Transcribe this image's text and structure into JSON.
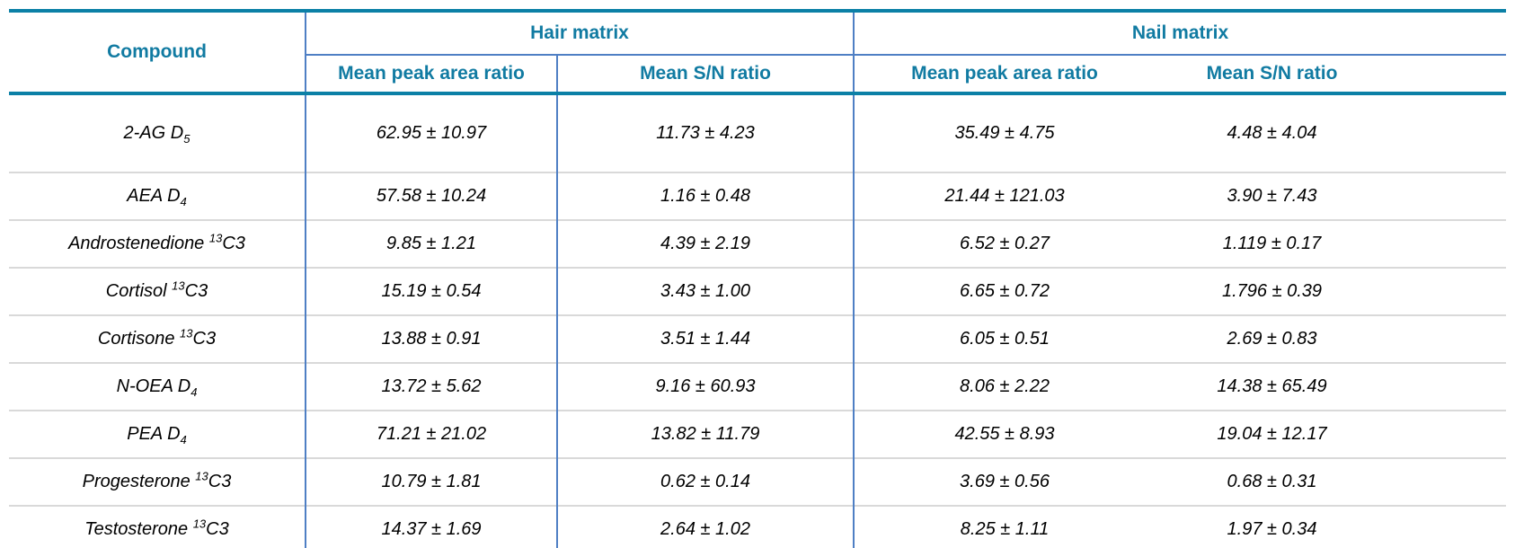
{
  "table": {
    "header": {
      "compound_label": "Compound",
      "groups": [
        {
          "label": "Hair matrix",
          "subcols": [
            "Mean peak area ratio",
            "Mean S/N ratio"
          ]
        },
        {
          "label": "Nail matrix",
          "subcols": [
            "Mean peak area ratio",
            "Mean S/N ratio"
          ]
        }
      ]
    },
    "rows": [
      {
        "compound": {
          "pre": "2-AG D",
          "sub": "5",
          "sup": "",
          "post": ""
        },
        "hair_peak": "62.95 ± 10.97",
        "hair_sn": "11.73 ± 4.23",
        "nail_peak": "35.49 ± 4.75",
        "nail_sn": "4.48 ± 4.04"
      },
      {
        "compound": {
          "pre": "AEA D",
          "sub": "4",
          "sup": "",
          "post": ""
        },
        "hair_peak": "57.58 ± 10.24",
        "hair_sn": "1.16 ± 0.48",
        "nail_peak": "21.44 ± 121.03",
        "nail_sn": "3.90 ± 7.43"
      },
      {
        "compound": {
          "pre": "Androstenedione ",
          "sub": "",
          "sup": "13",
          "post": "C3"
        },
        "hair_peak": "9.85 ± 1.21",
        "hair_sn": "4.39 ± 2.19",
        "nail_peak": "6.52 ± 0.27",
        "nail_sn": "1.119 ± 0.17"
      },
      {
        "compound": {
          "pre": "Cortisol ",
          "sub": "",
          "sup": "13",
          "post": "C3"
        },
        "hair_peak": "15.19 ± 0.54",
        "hair_sn": "3.43 ± 1.00",
        "nail_peak": "6.65 ± 0.72",
        "nail_sn": "1.796 ± 0.39"
      },
      {
        "compound": {
          "pre": "Cortisone ",
          "sub": "",
          "sup": "13",
          "post": "C3"
        },
        "hair_peak": "13.88 ± 0.91",
        "hair_sn": "3.51 ± 1.44",
        "nail_peak": "6.05 ± 0.51",
        "nail_sn": "2.69 ± 0.83"
      },
      {
        "compound": {
          "pre": "N-OEA D",
          "sub": "4",
          "sup": "",
          "post": ""
        },
        "hair_peak": "13.72 ± 5.62",
        "hair_sn": "9.16 ± 60.93",
        "nail_peak": "8.06 ± 2.22",
        "nail_sn": "14.38 ± 65.49"
      },
      {
        "compound": {
          "pre": "PEA D",
          "sub": "4",
          "sup": "",
          "post": ""
        },
        "hair_peak": "71.21 ± 21.02",
        "hair_sn": "13.82 ± 11.79",
        "nail_peak": "42.55 ± 8.93",
        "nail_sn": "19.04 ± 12.17"
      },
      {
        "compound": {
          "pre": "Progesterone ",
          "sub": "",
          "sup": "13",
          "post": "C3"
        },
        "hair_peak": "10.79 ± 1.81",
        "hair_sn": "0.62 ± 0.14",
        "nail_peak": "3.69 ± 0.56",
        "nail_sn": "0.68 ± 0.31"
      },
      {
        "compound": {
          "pre": "Testosterone ",
          "sub": "",
          "sup": "13",
          "post": "C3"
        },
        "hair_peak": "14.37 ± 1.69",
        "hair_sn": "2.64 ± 1.02",
        "nail_peak": "8.25 ± 1.11",
        "nail_sn": "1.97 ± 0.34"
      }
    ]
  },
  "colors": {
    "teal_border": "#0b80a6",
    "header_text": "#117ba2",
    "blue_border": "#4f7fc4",
    "row_divider": "#d9d9d9",
    "body_text": "#000000"
  }
}
